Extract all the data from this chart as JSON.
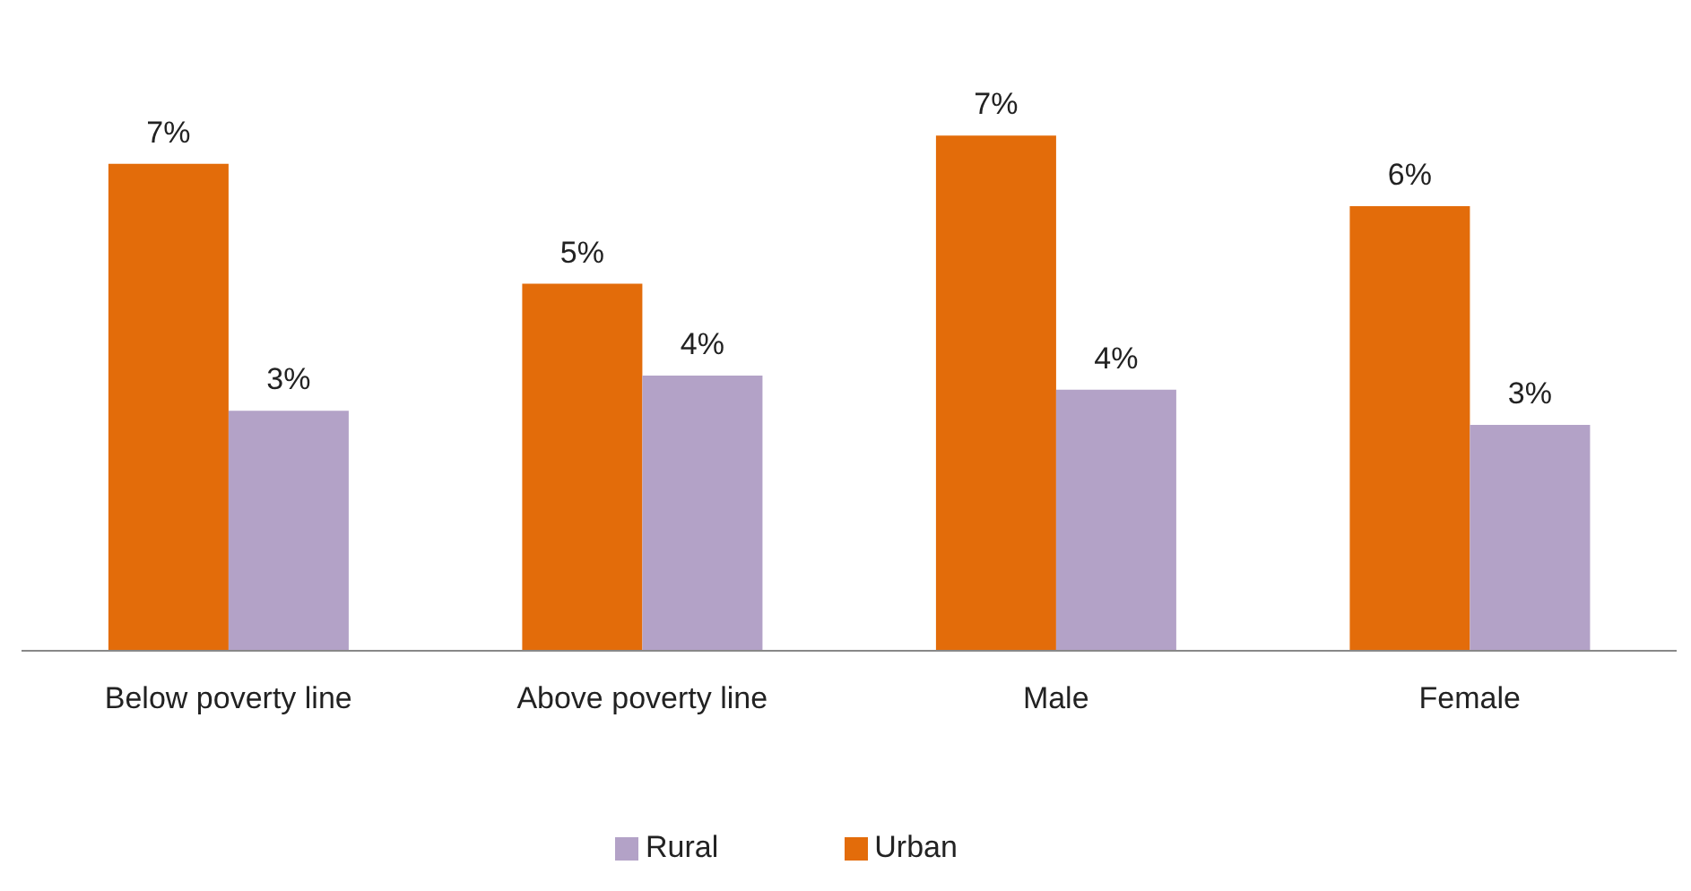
{
  "chart_data": {
    "type": "bar",
    "categories": [
      "Below poverty line",
      "Above poverty line",
      "Male",
      "Female"
    ],
    "series": [
      {
        "name": "Urban",
        "color": "#e36c0a",
        "values": [
          6.9,
          5.2,
          7.3,
          6.3
        ],
        "value_labels": [
          "7%",
          "5%",
          "7%",
          "6%"
        ]
      },
      {
        "name": "Rural",
        "color": "#b3a2c7",
        "values": [
          3.4,
          3.9,
          3.7,
          3.2
        ],
        "value_labels": [
          "3%",
          "4%",
          "4%",
          "3%"
        ]
      }
    ],
    "legend": "bottom",
    "grid": false
  }
}
